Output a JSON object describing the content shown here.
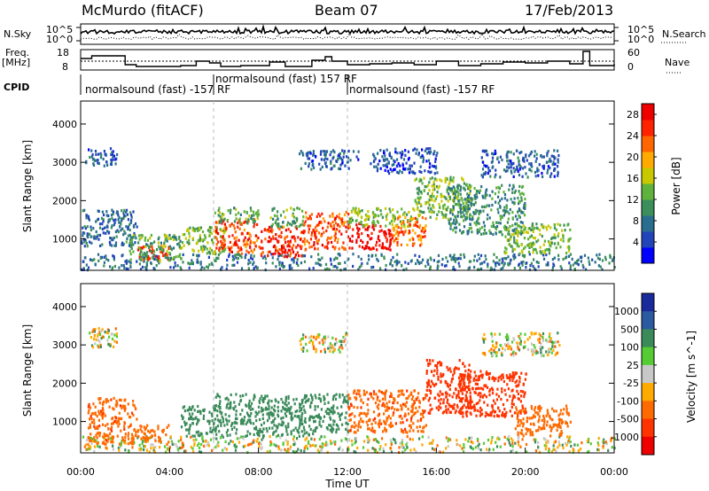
{
  "header": {
    "station": "McMurdo (fitACF)",
    "beam": "Beam 07",
    "date": "17/Feb/2013"
  },
  "strip_labels": {
    "nsky": "N.Sky",
    "nsearch": "N.Search",
    "freq": "Freq.",
    "freq_unit": "[MHz]",
    "nave": "Nave",
    "cpid": "CPID"
  },
  "strip_ticks": {
    "noise_left_top": "10^5",
    "noise_left_bottom": "10^0",
    "noise_right_top": "10^5",
    "noise_right_bottom": "10^0",
    "freq_top": "18",
    "freq_bottom": "8",
    "nave_top": "60",
    "nave_bottom": "0"
  },
  "cpid_segments": [
    {
      "label": "normalsound (fast) -157 RF",
      "start_hour": 0
    },
    {
      "label": "normalsound (fast) 157 RF",
      "start_hour": 6
    },
    {
      "label": "normalsound (fast) -157 RF",
      "start_hour": 12
    }
  ],
  "chart_data": [
    {
      "type": "heatmap",
      "panel": "power",
      "ylabel": "Slant Range [km]",
      "xlabel": "",
      "x_range_hours": [
        0,
        24
      ],
      "ylim": [
        180,
        4600
      ],
      "yticks": [
        "1000",
        "2000",
        "3000",
        "4000"
      ],
      "colorbar_label": "Power [dB]",
      "colorbar_ticks": [
        "4",
        "8",
        "12",
        "16",
        "20",
        "24",
        "28"
      ],
      "colorbar_range": [
        0,
        30
      ],
      "colors": [
        "#0000ff",
        "#2244bb",
        "#2a6e8f",
        "#3c8f5a",
        "#5fb23c",
        "#c8c800",
        "#ffaa00",
        "#ff6600",
        "#ff2200",
        "#ee0000"
      ],
      "regions": [
        {
          "t0": 0.2,
          "t1": 1.6,
          "r0": 2850,
          "r1": 3350,
          "v": 6
        },
        {
          "t0": 0.0,
          "t1": 24,
          "r0": 180,
          "r1": 600,
          "v": 8
        },
        {
          "t0": 0.0,
          "t1": 2.5,
          "r0": 800,
          "r1": 1750,
          "v": 7
        },
        {
          "t0": 2.5,
          "t1": 4.0,
          "r0": 450,
          "r1": 800,
          "v": 26
        },
        {
          "t0": 2.0,
          "t1": 4.5,
          "r0": 400,
          "r1": 1100,
          "v": 12
        },
        {
          "t0": 4.5,
          "t1": 6.5,
          "r0": 600,
          "r1": 1300,
          "v": 14
        },
        {
          "t0": 6.0,
          "t1": 8.0,
          "r0": 600,
          "r1": 1500,
          "v": 24
        },
        {
          "t0": 6.0,
          "t1": 8.0,
          "r0": 1400,
          "r1": 1800,
          "v": 12
        },
        {
          "t0": 8.0,
          "t1": 10.0,
          "r0": 500,
          "r1": 1300,
          "v": 26
        },
        {
          "t0": 8.5,
          "t1": 10.0,
          "r0": 1300,
          "r1": 1800,
          "v": 12
        },
        {
          "t0": 10.0,
          "t1": 12.0,
          "r0": 700,
          "r1": 1700,
          "v": 24
        },
        {
          "t0": 12.0,
          "t1": 14.0,
          "r0": 700,
          "r1": 1400,
          "v": 28
        },
        {
          "t0": 12.0,
          "t1": 15.0,
          "r0": 1300,
          "r1": 1800,
          "v": 14
        },
        {
          "t0": 14.0,
          "t1": 15.5,
          "r0": 800,
          "r1": 1600,
          "v": 22
        },
        {
          "t0": 15.0,
          "t1": 17.5,
          "r0": 1500,
          "r1": 2600,
          "v": 14
        },
        {
          "t0": 16.5,
          "t1": 20.0,
          "r0": 1100,
          "r1": 2400,
          "v": 10
        },
        {
          "t0": 19.0,
          "t1": 22.0,
          "r0": 600,
          "r1": 1400,
          "v": 14
        },
        {
          "t0": 9.8,
          "t1": 12.5,
          "r0": 2800,
          "r1": 3300,
          "v": 6
        },
        {
          "t0": 13.0,
          "t1": 16.0,
          "r0": 2700,
          "r1": 3350,
          "v": 5
        },
        {
          "t0": 18.0,
          "t1": 21.5,
          "r0": 2600,
          "r1": 3300,
          "v": 6
        }
      ]
    },
    {
      "type": "heatmap",
      "panel": "velocity",
      "ylabel": "Slant Range [km]",
      "xlabel": "Time UT",
      "x_range_hours": [
        0,
        24
      ],
      "xticks": [
        "00:00",
        "04:00",
        "08:00",
        "12:00",
        "16:00",
        "20:00",
        "00:00"
      ],
      "ylim": [
        180,
        4600
      ],
      "yticks": [
        "1000",
        "2000",
        "3000",
        "4000"
      ],
      "colorbar_label": "Velocity [m s^-1]",
      "colorbar_ticks": [
        "1000",
        "500",
        "100",
        "25",
        "-25",
        "-100",
        "-500",
        "-1000"
      ],
      "colorbar_range": [
        -1200,
        1200
      ],
      "regions": [
        {
          "t0": 0.0,
          "t1": 24,
          "r0": 180,
          "r1": 600,
          "v": 0
        },
        {
          "t0": 0.3,
          "t1": 2.5,
          "r0": 400,
          "r1": 1600,
          "v": -400
        },
        {
          "t0": 2.5,
          "t1": 4.0,
          "r0": 450,
          "r1": 900,
          "v": -300
        },
        {
          "t0": 4.5,
          "t1": 6.0,
          "r0": 600,
          "r1": 1400,
          "v": 300
        },
        {
          "t0": 6.0,
          "t1": 10.5,
          "r0": 600,
          "r1": 1700,
          "v": 300
        },
        {
          "t0": 10.5,
          "t1": 12.0,
          "r0": 700,
          "r1": 1700,
          "v": 250
        },
        {
          "t0": 12.0,
          "t1": 15.5,
          "r0": 700,
          "r1": 1800,
          "v": -400
        },
        {
          "t0": 15.5,
          "t1": 17.5,
          "r0": 1200,
          "r1": 2600,
          "v": -700
        },
        {
          "t0": 17.0,
          "t1": 20.0,
          "r0": 1100,
          "r1": 2300,
          "v": -800
        },
        {
          "t0": 19.5,
          "t1": 22.0,
          "r0": 600,
          "r1": 1400,
          "v": -300
        },
        {
          "t0": 0.3,
          "t1": 1.6,
          "r0": 2900,
          "r1": 3450,
          "v": 0
        },
        {
          "t0": 9.8,
          "t1": 12.0,
          "r0": 2800,
          "r1": 3300,
          "v": 0
        },
        {
          "t0": 18.0,
          "t1": 21.5,
          "r0": 2700,
          "r1": 3300,
          "v": 0
        }
      ]
    }
  ]
}
